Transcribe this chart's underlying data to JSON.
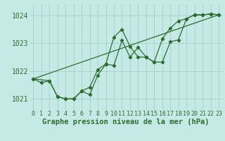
{
  "xlabel": "Graphe pression niveau de la mer (hPa)",
  "ylim": [
    1020.6,
    1024.4
  ],
  "xlim": [
    -0.5,
    23.5
  ],
  "yticks": [
    1021,
    1022,
    1023,
    1024
  ],
  "xticks": [
    0,
    1,
    2,
    3,
    4,
    5,
    6,
    7,
    8,
    9,
    10,
    11,
    12,
    13,
    14,
    15,
    16,
    17,
    18,
    19,
    20,
    21,
    22,
    23
  ],
  "line_jagged1_x": [
    0,
    1,
    2,
    3,
    4,
    5,
    6,
    7,
    8,
    9,
    10,
    11,
    12,
    13,
    14,
    15,
    16,
    17,
    18,
    19,
    20,
    21,
    22,
    23
  ],
  "line_jagged1_y": [
    1021.72,
    1021.58,
    1021.65,
    1021.08,
    1021.0,
    1021.0,
    1021.28,
    1021.42,
    1022.05,
    1022.25,
    1023.22,
    1023.5,
    1022.88,
    1022.5,
    1022.5,
    1022.32,
    1022.32,
    1023.05,
    1023.12,
    1023.88,
    1024.02,
    1024.02,
    1024.05,
    1024.02
  ],
  "line_jagged2_x": [
    0,
    2,
    3,
    4,
    5,
    6,
    7,
    8,
    9,
    10,
    11,
    12,
    13,
    14,
    15,
    16,
    17,
    18,
    19,
    20,
    21,
    22,
    23
  ],
  "line_jagged2_y": [
    1021.72,
    1021.65,
    1021.08,
    1021.0,
    1021.0,
    1021.28,
    1021.15,
    1021.85,
    1022.25,
    1022.2,
    1023.1,
    1022.5,
    1022.85,
    1022.5,
    1022.32,
    1023.15,
    1023.55,
    1023.8,
    1023.88,
    1024.02,
    1024.02,
    1024.05,
    1024.02
  ],
  "line_trend_x": [
    0,
    23
  ],
  "line_trend_y": [
    1021.72,
    1024.02
  ],
  "line_color": "#2d6e2d",
  "bg_color": "#c5eae6",
  "grid_color": "#9dccc8",
  "text_color": "#2d6e2d",
  "tick_fontsize": 6,
  "label_fontsize": 7.5
}
